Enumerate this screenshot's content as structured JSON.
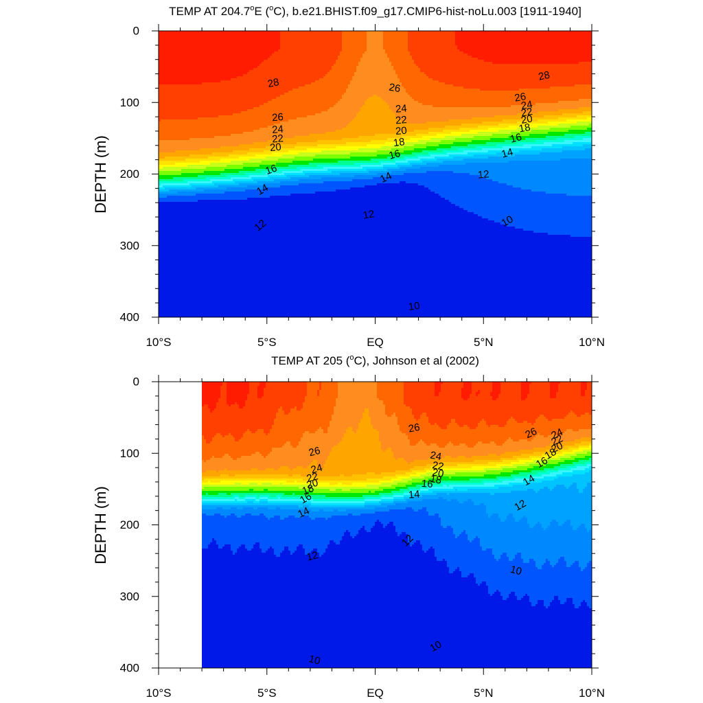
{
  "chart_data": [
    {
      "type": "contour",
      "title_parts": [
        "TEMP AT 204.7",
        "o",
        "E (",
        "o",
        "C), b.e21.BHIST.f09_g17.CMIP6-hist-noLu.003 [1911-1940]"
      ],
      "ylabel": "DEPTH (m)",
      "xlim": [
        -10,
        10
      ],
      "ylim": [
        0,
        400
      ],
      "y_inverted": true,
      "data_start_lat": -10,
      "x_ticks": [
        {
          "value": -10,
          "label": "10°S"
        },
        {
          "value": -5,
          "label": "5°S"
        },
        {
          "value": 0,
          "label": "EQ"
        },
        {
          "value": 5,
          "label": "5°N"
        },
        {
          "value": 10,
          "label": "10°N"
        }
      ],
      "y_ticks": [
        {
          "value": 0,
          "label": "0"
        },
        {
          "value": 100,
          "label": "100"
        },
        {
          "value": 200,
          "label": "200"
        },
        {
          "value": 300,
          "label": "300"
        },
        {
          "value": 400,
          "label": "400"
        }
      ],
      "contour_levels": [
        10,
        11,
        12,
        13,
        14,
        15,
        16,
        17,
        18,
        19,
        20,
        21,
        22,
        23,
        24,
        25,
        26,
        27,
        28
      ],
      "contour_labels": [
        {
          "text": "28",
          "lat": -4.7,
          "depth": 73,
          "angle": -12
        },
        {
          "text": "26",
          "lat": 0.9,
          "depth": 80,
          "angle": 10
        },
        {
          "text": "28",
          "lat": 7.8,
          "depth": 63,
          "angle": -12
        },
        {
          "text": "26",
          "lat": 6.7,
          "depth": 93,
          "angle": -10
        },
        {
          "text": "24",
          "lat": 7.0,
          "depth": 104,
          "angle": -10
        },
        {
          "text": "22",
          "lat": 7.0,
          "depth": 114,
          "angle": -10
        },
        {
          "text": "20",
          "lat": 7.0,
          "depth": 124,
          "angle": -10
        },
        {
          "text": "18",
          "lat": 6.9,
          "depth": 136,
          "angle": -10
        },
        {
          "text": "16",
          "lat": 6.5,
          "depth": 150,
          "angle": -15
        },
        {
          "text": "14",
          "lat": 6.1,
          "depth": 171,
          "angle": -15
        },
        {
          "text": "12",
          "lat": 5.0,
          "depth": 201,
          "angle": -5
        },
        {
          "text": "10",
          "lat": 6.1,
          "depth": 266,
          "angle": -30
        },
        {
          "text": "26",
          "lat": -4.5,
          "depth": 121,
          "angle": -5
        },
        {
          "text": "24",
          "lat": -4.5,
          "depth": 138,
          "angle": -5
        },
        {
          "text": "22",
          "lat": -4.5,
          "depth": 151,
          "angle": -5
        },
        {
          "text": "20",
          "lat": -4.6,
          "depth": 163,
          "angle": -5
        },
        {
          "text": "18",
          "lat": 1.1,
          "depth": 156,
          "angle": -8
        },
        {
          "text": "20",
          "lat": 1.2,
          "depth": 140,
          "angle": -5
        },
        {
          "text": "22",
          "lat": 1.2,
          "depth": 125,
          "angle": -5
        },
        {
          "text": "24",
          "lat": 1.2,
          "depth": 109,
          "angle": -5
        },
        {
          "text": "16",
          "lat": -4.8,
          "depth": 194,
          "angle": -20
        },
        {
          "text": "14",
          "lat": -5.2,
          "depth": 222,
          "angle": -30
        },
        {
          "text": "16",
          "lat": 0.9,
          "depth": 173,
          "angle": -15
        },
        {
          "text": "14",
          "lat": 0.5,
          "depth": 205,
          "angle": -25
        },
        {
          "text": "12",
          "lat": -0.3,
          "depth": 257,
          "angle": -10
        },
        {
          "text": "12",
          "lat": -5.3,
          "depth": 272,
          "angle": -40
        },
        {
          "text": "10",
          "lat": 1.8,
          "depth": 385,
          "angle": -8
        }
      ]
    },
    {
      "type": "contour",
      "title_parts": [
        "TEMP AT 205 (",
        "o",
        "C), Johnson et al (2002)"
      ],
      "ylabel": "DEPTH (m)",
      "xlim": [
        -10,
        10
      ],
      "ylim": [
        0,
        400
      ],
      "y_inverted": true,
      "data_start_lat": -8,
      "x_ticks": [
        {
          "value": -10,
          "label": "10°S"
        },
        {
          "value": -5,
          "label": "5°S"
        },
        {
          "value": 0,
          "label": "EQ"
        },
        {
          "value": 5,
          "label": "5°N"
        },
        {
          "value": 10,
          "label": "10°N"
        }
      ],
      "y_ticks": [
        {
          "value": 0,
          "label": "0"
        },
        {
          "value": 100,
          "label": "100"
        },
        {
          "value": 200,
          "label": "200"
        },
        {
          "value": 300,
          "label": "300"
        },
        {
          "value": 400,
          "label": "400"
        }
      ],
      "contour_levels": [
        10,
        11,
        12,
        13,
        14,
        15,
        16,
        17,
        18,
        19,
        20,
        21,
        22,
        23,
        24,
        25,
        26,
        27,
        28
      ],
      "contour_labels": [
        {
          "text": "26",
          "lat": 1.8,
          "depth": 65,
          "angle": -10
        },
        {
          "text": "26",
          "lat": 7.2,
          "depth": 72,
          "angle": -25
        },
        {
          "text": "24",
          "lat": 8.4,
          "depth": 73,
          "angle": -25
        },
        {
          "text": "22",
          "lat": 8.4,
          "depth": 82,
          "angle": -25
        },
        {
          "text": "20",
          "lat": 8.4,
          "depth": 92,
          "angle": -25
        },
        {
          "text": "18",
          "lat": 8.1,
          "depth": 101,
          "angle": -30
        },
        {
          "text": "16",
          "lat": 7.7,
          "depth": 113,
          "angle": -30
        },
        {
          "text": "14",
          "lat": 7.1,
          "depth": 138,
          "angle": -30
        },
        {
          "text": "12",
          "lat": 6.7,
          "depth": 173,
          "angle": -30
        },
        {
          "text": "26",
          "lat": -2.8,
          "depth": 98,
          "angle": -15
        },
        {
          "text": "24",
          "lat": -2.7,
          "depth": 122,
          "angle": -15
        },
        {
          "text": "22",
          "lat": -2.9,
          "depth": 134,
          "angle": -15
        },
        {
          "text": "20",
          "lat": -2.9,
          "depth": 143,
          "angle": -15
        },
        {
          "text": "18",
          "lat": -3.1,
          "depth": 151,
          "angle": -20
        },
        {
          "text": "16",
          "lat": -3.2,
          "depth": 163,
          "angle": -30
        },
        {
          "text": "14",
          "lat": -3.3,
          "depth": 183,
          "angle": -25
        },
        {
          "text": "24",
          "lat": 2.8,
          "depth": 104,
          "angle": 10
        },
        {
          "text": "22",
          "lat": 2.9,
          "depth": 118,
          "angle": 10
        },
        {
          "text": "20",
          "lat": 2.9,
          "depth": 128,
          "angle": 10
        },
        {
          "text": "18",
          "lat": 2.8,
          "depth": 137,
          "angle": 10
        },
        {
          "text": "16",
          "lat": 2.4,
          "depth": 143,
          "angle": 5
        },
        {
          "text": "14",
          "lat": 1.8,
          "depth": 158,
          "angle": -5
        },
        {
          "text": "12",
          "lat": 1.5,
          "depth": 222,
          "angle": -45
        },
        {
          "text": "12",
          "lat": -2.9,
          "depth": 244,
          "angle": -15
        },
        {
          "text": "10",
          "lat": 6.5,
          "depth": 264,
          "angle": 15
        },
        {
          "text": "10",
          "lat": 2.8,
          "depth": 370,
          "angle": -30
        },
        {
          "text": "10",
          "lat": -2.8,
          "depth": 389,
          "angle": 15
        }
      ]
    }
  ]
}
